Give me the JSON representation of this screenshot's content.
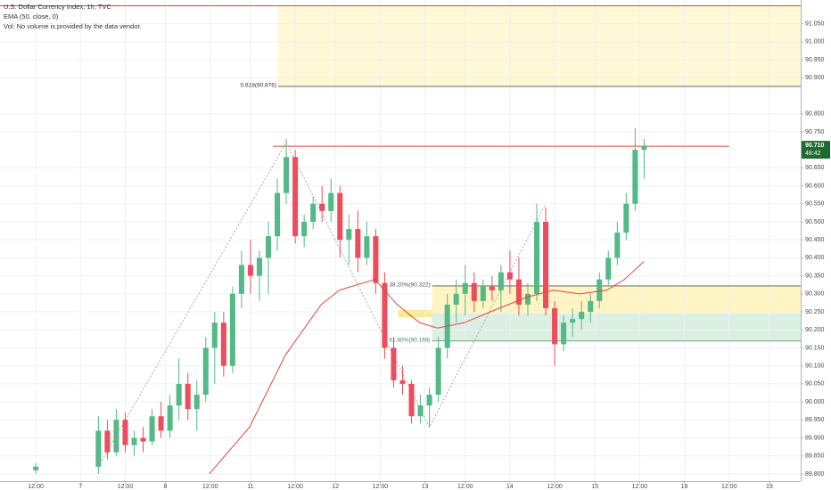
{
  "chart_data": {
    "type": "candlestick",
    "title": "U.S. Dollar Currency Index, 1h, TVC",
    "indicator": "EMA (50, close, 0)",
    "volume_note": "Vol: No volume is provided by the data vendor.",
    "up_color": "#53b987",
    "down_color": "#eb4d5c",
    "grid": true,
    "xlim": [
      -4,
      85.5
    ],
    "ylim": [
      89.78,
      91.116
    ],
    "xticks": [
      {
        "value": 0,
        "label": "12:00"
      },
      {
        "value": 5,
        "label": "7"
      },
      {
        "value": 10,
        "label": "12:00"
      },
      {
        "value": 14.5,
        "label": "8"
      },
      {
        "value": 19.5,
        "label": "12:00"
      },
      {
        "value": 24,
        "label": "11"
      },
      {
        "value": 29,
        "label": "12:00"
      },
      {
        "value": 33.5,
        "label": "12"
      },
      {
        "value": 38.5,
        "label": "12:00"
      },
      {
        "value": 43.5,
        "label": "13"
      },
      {
        "value": 48,
        "label": "12:00"
      },
      {
        "value": 53,
        "label": "14"
      },
      {
        "value": 58,
        "label": "12:00"
      },
      {
        "value": 62.5,
        "label": "15"
      },
      {
        "value": 67.5,
        "label": "12:00"
      },
      {
        "value": 72.5,
        "label": "18"
      },
      {
        "value": 77.5,
        "label": "12:00"
      },
      {
        "value": 82,
        "label": "19"
      }
    ],
    "yticks": [
      {
        "value": 89.8,
        "label": "89.800"
      },
      {
        "value": 89.85,
        "label": "89.850"
      },
      {
        "value": 89.9,
        "label": "89.900"
      },
      {
        "value": 89.95,
        "label": "89.950"
      },
      {
        "value": 90.0,
        "label": "90.000"
      },
      {
        "value": 90.05,
        "label": "90.050"
      },
      {
        "value": 90.1,
        "label": "90.100"
      },
      {
        "value": 90.15,
        "label": "90.150"
      },
      {
        "value": 90.2,
        "label": "90.200"
      },
      {
        "value": 90.25,
        "label": "90.250"
      },
      {
        "value": 90.3,
        "label": "90.300"
      },
      {
        "value": 90.35,
        "label": "90.350"
      },
      {
        "value": 90.4,
        "label": "90.400"
      },
      {
        "value": 90.45,
        "label": "90.450"
      },
      {
        "value": 90.5,
        "label": "90.500"
      },
      {
        "value": 90.55,
        "label": "90.550"
      },
      {
        "value": 90.6,
        "label": "90.600"
      },
      {
        "value": 90.65,
        "label": "90.650"
      },
      {
        "value": 90.75,
        "label": "90.750"
      },
      {
        "value": 90.8,
        "label": "90.800"
      },
      {
        "value": 90.9,
        "label": "90.900"
      },
      {
        "value": 90.95,
        "label": "90.950"
      },
      {
        "value": 91.0,
        "label": "91.000"
      },
      {
        "value": 91.05,
        "label": "91.050"
      }
    ],
    "x": [
      0,
      7,
      8,
      9,
      10,
      11,
      12,
      13,
      14,
      15,
      16,
      17,
      18,
      19,
      20,
      21,
      22,
      23,
      24,
      25,
      26,
      27,
      28,
      29,
      30,
      31,
      32,
      33,
      34,
      35,
      36,
      37,
      38,
      39,
      40,
      41,
      42,
      43,
      44,
      45,
      46,
      47,
      48,
      49,
      50,
      51,
      52,
      53,
      54,
      55,
      56,
      57,
      58,
      59,
      60,
      61,
      62,
      63,
      64,
      65,
      66,
      67,
      68
    ],
    "candles": [
      [
        89.81,
        89.83,
        89.8,
        89.82
      ],
      [
        89.82,
        89.96,
        89.8,
        89.92
      ],
      [
        89.92,
        89.95,
        89.84,
        89.86
      ],
      [
        89.86,
        89.98,
        89.85,
        89.95
      ],
      [
        89.95,
        89.97,
        89.86,
        89.88
      ],
      [
        89.88,
        89.92,
        89.85,
        89.9
      ],
      [
        89.9,
        89.93,
        89.86,
        89.89
      ],
      [
        89.89,
        89.98,
        89.88,
        89.96
      ],
      [
        89.96,
        90.0,
        89.9,
        89.92
      ],
      [
        89.92,
        90.02,
        89.9,
        89.99
      ],
      [
        89.99,
        90.12,
        89.95,
        90.05
      ],
      [
        90.05,
        90.08,
        89.95,
        89.98
      ],
      [
        89.98,
        90.06,
        89.92,
        90.02
      ],
      [
        90.02,
        90.18,
        90.0,
        90.15
      ],
      [
        90.15,
        90.25,
        90.05,
        90.22
      ],
      [
        90.22,
        90.25,
        90.07,
        90.1
      ],
      [
        90.1,
        90.32,
        90.08,
        90.3
      ],
      [
        90.3,
        90.42,
        90.26,
        90.38
      ],
      [
        90.38,
        90.45,
        90.3,
        90.35
      ],
      [
        90.35,
        90.42,
        90.28,
        90.4
      ],
      [
        90.4,
        90.5,
        90.3,
        90.46
      ],
      [
        90.46,
        90.62,
        90.42,
        90.58
      ],
      [
        90.58,
        90.73,
        90.55,
        90.68
      ],
      [
        90.68,
        90.7,
        90.44,
        90.46
      ],
      [
        90.46,
        90.52,
        90.43,
        90.5
      ],
      [
        90.5,
        90.57,
        90.48,
        90.55
      ],
      [
        90.55,
        90.6,
        90.5,
        90.53
      ],
      [
        90.53,
        90.62,
        90.5,
        90.58
      ],
      [
        90.58,
        90.6,
        90.4,
        90.45
      ],
      [
        90.45,
        90.52,
        90.38,
        90.48
      ],
      [
        90.48,
        90.53,
        90.36,
        90.4
      ],
      [
        90.4,
        90.5,
        90.38,
        90.46
      ],
      [
        90.46,
        90.48,
        90.3,
        90.33
      ],
      [
        90.33,
        90.36,
        90.12,
        90.15
      ],
      [
        90.15,
        90.18,
        90.04,
        90.06
      ],
      [
        90.06,
        90.1,
        90.02,
        90.05
      ],
      [
        90.05,
        90.06,
        89.94,
        89.96
      ],
      [
        89.96,
        90.02,
        89.94,
        89.99
      ],
      [
        89.99,
        90.04,
        89.93,
        90.02
      ],
      [
        90.02,
        90.18,
        90.0,
        90.15
      ],
      [
        90.15,
        90.3,
        90.12,
        90.27
      ],
      [
        90.27,
        90.34,
        90.22,
        90.3
      ],
      [
        90.3,
        90.38,
        90.24,
        90.33
      ],
      [
        90.33,
        90.36,
        90.25,
        90.28
      ],
      [
        90.28,
        90.34,
        90.26,
        90.32
      ],
      [
        90.32,
        90.35,
        90.28,
        90.31
      ],
      [
        90.31,
        90.38,
        90.25,
        90.36
      ],
      [
        90.36,
        90.42,
        90.3,
        90.34
      ],
      [
        90.34,
        90.4,
        90.24,
        90.27
      ],
      [
        90.27,
        90.33,
        90.24,
        90.3
      ],
      [
        90.3,
        90.55,
        90.28,
        90.5
      ],
      [
        90.5,
        90.54,
        90.24,
        90.26
      ],
      [
        90.26,
        90.28,
        90.1,
        90.16
      ],
      [
        90.16,
        90.24,
        90.14,
        90.22
      ],
      [
        90.22,
        90.26,
        90.18,
        90.23
      ],
      [
        90.23,
        90.28,
        90.2,
        90.25
      ],
      [
        90.25,
        90.3,
        90.22,
        90.28
      ],
      [
        90.28,
        90.36,
        90.26,
        90.34
      ],
      [
        90.34,
        90.42,
        90.32,
        90.4
      ],
      [
        90.4,
        90.5,
        90.38,
        90.47
      ],
      [
        90.47,
        90.58,
        90.45,
        90.55
      ],
      [
        90.55,
        90.76,
        90.53,
        90.7
      ],
      [
        90.7,
        90.73,
        90.62,
        90.71
      ]
    ],
    "ema": {
      "color": "#e0463c",
      "x": [
        19.4,
        23.9,
        27.9,
        31.9,
        33.9,
        37.9,
        40.4,
        42.9,
        44.9,
        47.9,
        51.8,
        54.8,
        57.8,
        60.8,
        63.8,
        65.8,
        68
      ],
      "values": [
        89.8,
        89.93,
        90.13,
        90.27,
        90.31,
        90.34,
        90.27,
        90.22,
        90.205,
        90.22,
        90.26,
        90.29,
        90.31,
        90.3,
        90.31,
        90.34,
        90.39
      ]
    },
    "zigzag": {
      "x": [
        7,
        28,
        44,
        57
      ],
      "values": [
        89.82,
        90.72,
        89.93,
        90.55
      ]
    },
    "hlines": [
      {
        "value": 91.1,
        "x": [
          -4,
          85.5
        ],
        "color": "#e0463c"
      },
      {
        "value": 90.71,
        "x": [
          26.5,
          77.5
        ],
        "color": "#e0463c"
      }
    ],
    "zones": [
      {
        "from": 90.876,
        "to": 91.1,
        "x": [
          27.1,
          85.5
        ],
        "color": "#fff8d6"
      },
      {
        "from": 90.245,
        "to": 90.322,
        "x": [
          44.3,
          85.5
        ],
        "color": "#fff4c2"
      },
      {
        "from": 90.169,
        "to": 90.245,
        "x": [
          44.3,
          85.5
        ],
        "color": "#dcefe3"
      },
      {
        "from": 90.235,
        "to": 90.255,
        "x": [
          40.5,
          44.3
        ],
        "color": "#fbeb8a"
      }
    ],
    "fib_levels": [
      {
        "label": "0.618(90.876)",
        "value": 90.876,
        "x": [
          27.1,
          85.5
        ],
        "color": "#333333"
      },
      {
        "label": "38.20%(90.322)",
        "value": 90.322,
        "x": [
          44.3,
          85.5
        ],
        "color": "#555555"
      },
      {
        "label": "61.80%(90.169)",
        "value": 90.169,
        "x": [
          44.3,
          85.5
        ],
        "color": "#3f8f55"
      }
    ],
    "last_price": {
      "value": 90.71,
      "label": "90.710",
      "countdown": "48:42",
      "color": "#1e6b2f"
    }
  }
}
